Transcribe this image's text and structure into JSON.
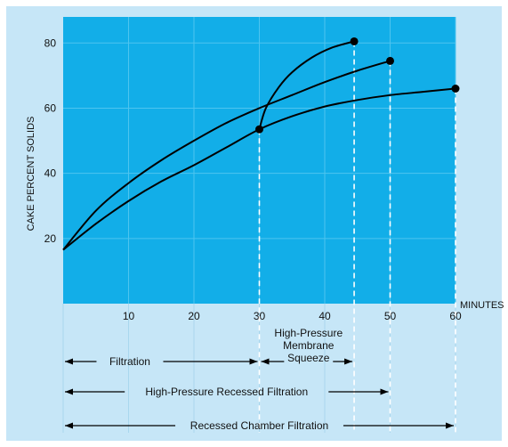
{
  "colors": {
    "panel_background": "#c6e6f7",
    "plot_background": "#12aee8",
    "plot_grid": "#4ec4ef",
    "lower_grid": "#a9d7ee",
    "curves": "#000000",
    "drop_lines": "#ffffff"
  },
  "chart_data": {
    "type": "line",
    "xlabel": "MINUTES",
    "ylabel": "CAKE PERCENT SOLIDS",
    "xlim": [
      0,
      60
    ],
    "ylim": [
      0,
      88
    ],
    "xticks": [
      10,
      20,
      30,
      40,
      50,
      60
    ],
    "yticks": [
      20,
      40,
      60,
      80
    ],
    "grid": true,
    "series": [
      {
        "x": [
          0,
          5,
          10,
          15,
          20,
          25,
          30,
          35,
          40,
          45,
          50
        ],
        "y": [
          16.5,
          28.5,
          37,
          44,
          50,
          55.5,
          60,
          64,
          68,
          71.5,
          74.5
        ]
      },
      {
        "x": [
          0,
          5,
          10,
          15,
          20,
          25,
          30,
          35,
          40,
          45,
          50,
          55,
          60
        ],
        "y": [
          16.5,
          24.5,
          31.5,
          37.5,
          42.5,
          48,
          53.5,
          57.5,
          60.5,
          62.5,
          64,
          65,
          66
        ]
      },
      {
        "x": [
          30,
          31,
          33,
          35,
          38,
          41,
          44.5
        ],
        "y": [
          53.5,
          60,
          66.5,
          71,
          75.5,
          78.5,
          80.5
        ]
      }
    ],
    "endpoints": [
      {
        "x": 30,
        "y": 53.5
      },
      {
        "x": 44.5,
        "y": 80.5
      },
      {
        "x": 50,
        "y": 74.5
      },
      {
        "x": 60,
        "y": 66
      }
    ],
    "timeline": [
      {
        "label": "Filtration",
        "start": 0,
        "end": 30,
        "row": 1
      },
      {
        "label": "High-Pressure\nMembrane\nSqueeze",
        "start": 30,
        "end": 44.5,
        "row": 1
      },
      {
        "label": "High-Pressure Recessed Filtration",
        "start": 0,
        "end": 50,
        "row": 2
      },
      {
        "label": "Recessed Chamber Filtration",
        "start": 0,
        "end": 60,
        "row": 3
      }
    ]
  }
}
